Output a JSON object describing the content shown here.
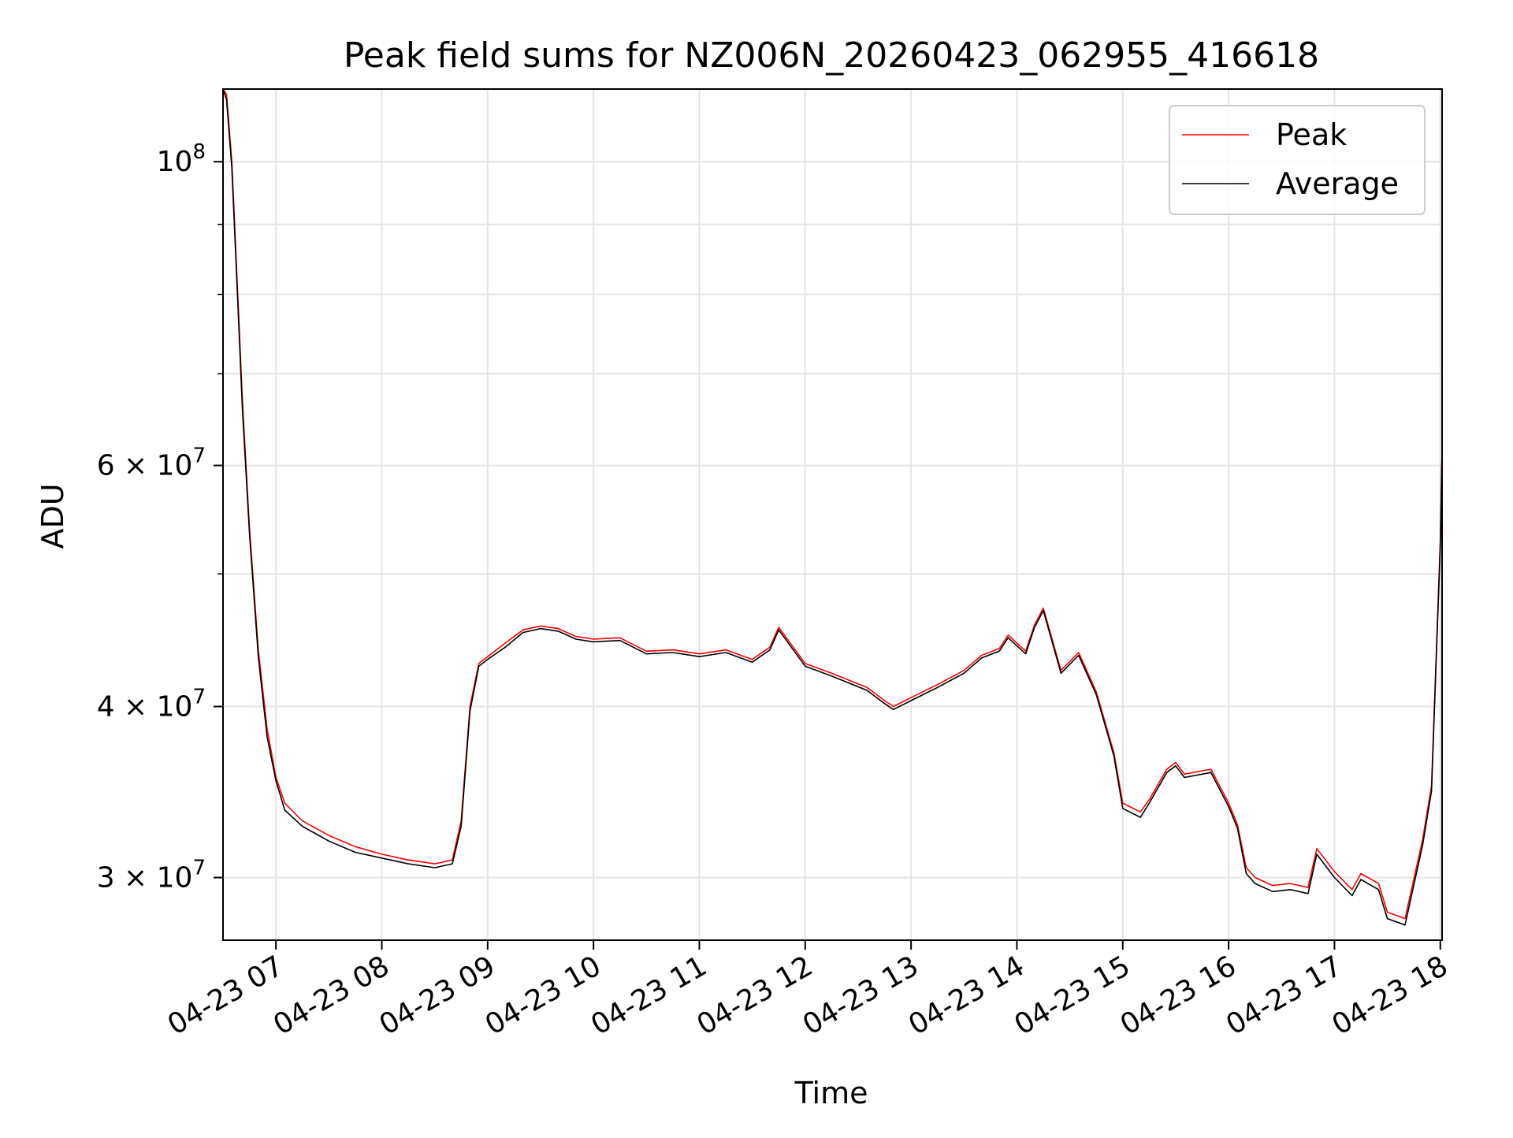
{
  "chart_data": {
    "type": "line",
    "title": "Peak field sums for NZ006N_20260423_062955_416618",
    "xlabel": "Time",
    "ylabel": "ADU",
    "y_scale": "log",
    "ylim": [
      27000000,
      113000000
    ],
    "xlim": [
      "2026-04-23 06:30",
      "2026-04-23 18:01"
    ],
    "grid": true,
    "legend_position": "top-right",
    "x_tick_labels": [
      "04-23 07",
      "04-23 08",
      "04-23 09",
      "04-23 10",
      "04-23 11",
      "04-23 12",
      "04-23 13",
      "04-23 14",
      "04-23 15",
      "04-23 16",
      "04-23 17",
      "04-23 18"
    ],
    "y_tick_labels": [
      {
        "value": 100000000,
        "base": "10",
        "exp": "8"
      },
      {
        "value": 60000000,
        "base": "6 × 10",
        "exp": "7"
      },
      {
        "value": 40000000,
        "base": "4 × 10",
        "exp": "7"
      },
      {
        "value": 30000000,
        "base": "3 × 10",
        "exp": "7"
      }
    ],
    "x": [
      "06:30",
      "06:32",
      "06:35",
      "06:38",
      "06:41",
      "06:45",
      "06:50",
      "06:55",
      "07:00",
      "07:05",
      "07:15",
      "07:30",
      "07:45",
      "08:00",
      "08:15",
      "08:30",
      "08:40",
      "08:45",
      "08:50",
      "08:55",
      "09:00",
      "09:10",
      "09:20",
      "09:30",
      "09:40",
      "09:50",
      "10:00",
      "10:15",
      "10:30",
      "10:45",
      "11:00",
      "11:15",
      "11:30",
      "11:40",
      "11:45",
      "12:00",
      "12:15",
      "12:25",
      "12:35",
      "12:45",
      "12:50",
      "13:00",
      "13:15",
      "13:30",
      "13:40",
      "13:50",
      "13:55",
      "14:05",
      "14:10",
      "14:15",
      "14:25",
      "14:35",
      "14:45",
      "14:55",
      "15:00",
      "15:10",
      "15:15",
      "15:25",
      "15:30",
      "15:35",
      "15:45",
      "15:50",
      "16:00",
      "16:05",
      "16:10",
      "16:15",
      "16:25",
      "16:35",
      "16:45",
      "16:50",
      "17:00",
      "17:10",
      "17:15",
      "17:25",
      "17:30",
      "17:40",
      "17:50",
      "17:55",
      "18:00",
      "18:01"
    ],
    "series": [
      {
        "name": "Peak",
        "color": "#ff0000",
        "values": [
          114000000,
          112000000,
          100000000,
          82000000,
          67000000,
          54000000,
          44000000,
          38500000,
          35500000,
          34000000,
          33000000,
          32200000,
          31600000,
          31200000,
          30900000,
          30700000,
          30900000,
          33000000,
          40000000,
          43000000,
          43500000,
          44500000,
          45500000,
          45800000,
          45600000,
          45000000,
          44800000,
          44900000,
          43900000,
          44000000,
          43700000,
          44000000,
          43300000,
          44200000,
          45700000,
          43000000,
          42300000,
          41800000,
          41300000,
          40400000,
          40000000,
          40600000,
          41500000,
          42500000,
          43600000,
          44100000,
          45100000,
          43900000,
          45900000,
          47200000,
          42500000,
          43800000,
          41000000,
          37000000,
          34000000,
          33500000,
          34200000,
          36000000,
          36400000,
          35700000,
          35900000,
          36000000,
          34000000,
          32800000,
          30500000,
          30000000,
          29600000,
          29700000,
          29500000,
          31500000,
          30300000,
          29400000,
          30200000,
          29700000,
          28300000,
          28000000,
          32000000,
          35000000,
          53000000,
          62000000
        ]
      },
      {
        "name": "Average",
        "color": "#000000",
        "values": [
          113000000,
          111000000,
          99000000,
          81000000,
          66000000,
          53500000,
          43500000,
          38000000,
          35300000,
          33600000,
          32700000,
          31900000,
          31300000,
          31000000,
          30700000,
          30500000,
          30700000,
          32700000,
          39700000,
          42800000,
          43300000,
          44200000,
          45300000,
          45600000,
          45400000,
          44800000,
          44600000,
          44700000,
          43700000,
          43800000,
          43500000,
          43800000,
          43100000,
          44000000,
          45500000,
          42800000,
          42100000,
          41600000,
          41100000,
          40200000,
          39800000,
          40400000,
          41300000,
          42300000,
          43400000,
          43900000,
          44900000,
          43700000,
          45700000,
          47000000,
          42300000,
          43600000,
          40800000,
          36800000,
          33700000,
          33200000,
          34000000,
          35800000,
          36200000,
          35500000,
          35700000,
          35800000,
          33800000,
          32600000,
          30200000,
          29700000,
          29300000,
          29400000,
          29200000,
          31200000,
          30000000,
          29100000,
          29900000,
          29400000,
          28000000,
          27700000,
          31700000,
          34700000,
          52500000,
          61500000
        ]
      }
    ]
  }
}
